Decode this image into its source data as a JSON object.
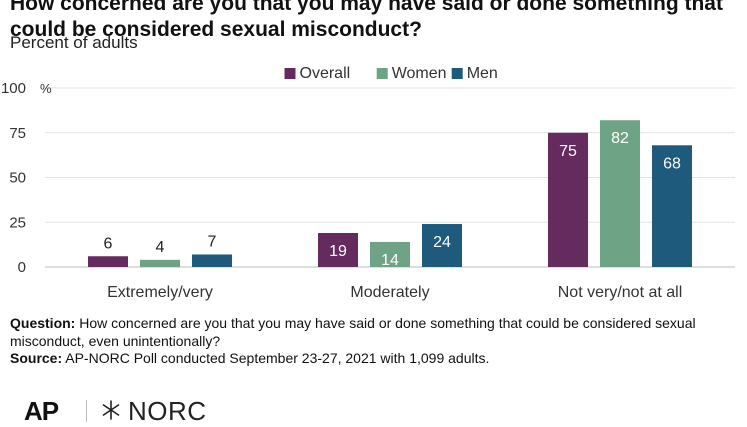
{
  "title": {
    "line1": "How concerned are you that you may have said or done something that",
    "line2": "could be considered sexual misconduct?"
  },
  "subtitle": "Percent of adults",
  "chart_data": {
    "type": "bar",
    "categories": [
      "Extremely/very",
      "Moderately",
      "Not very/not at all"
    ],
    "series": [
      {
        "name": "Overall",
        "color": "#652b5e",
        "values": [
          6,
          19,
          75
        ]
      },
      {
        "name": "Women",
        "color": "#6ea386",
        "values": [
          4,
          14,
          82
        ]
      },
      {
        "name": "Men",
        "color": "#1e5a7b",
        "values": [
          7,
          24,
          68
        ]
      }
    ],
    "ylim": [
      0,
      100
    ],
    "yticks": [
      0,
      25,
      50,
      75,
      100
    ],
    "y_unit": "%",
    "grid": true,
    "legend_position": "top-center"
  },
  "notes": {
    "question_label": "Question:",
    "question_text": "How concerned are you that you may have said or done something that could be considered sexual misconduct, even unintentionally?",
    "source_label": "Source:",
    "source_text": "AP-NORC Poll conducted September 23-27, 2021 with 1,099 adults."
  },
  "logos": {
    "ap": "AP",
    "norc": "NORC"
  }
}
